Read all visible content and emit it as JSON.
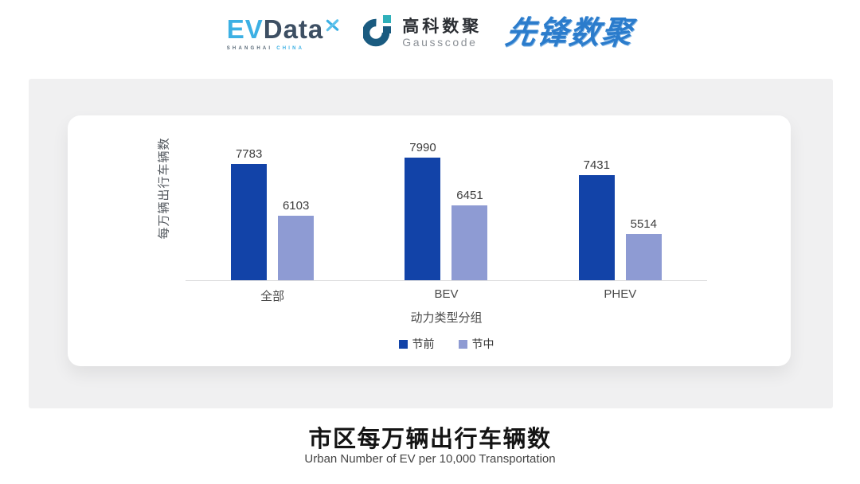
{
  "header": {
    "evdata": {
      "ev": "EV",
      "data": "Data",
      "sub_left": "SHANGHAI",
      "sub_right": "CHINA"
    },
    "gausscode": {
      "cn": "高科数聚",
      "en": "Gausscode"
    },
    "pioneer": {
      "text": "先锋数聚"
    }
  },
  "chart_data": {
    "type": "bar",
    "categories": [
      "全部",
      "BEV",
      "PHEV"
    ],
    "series": [
      {
        "name": "节前",
        "color": "#1243a8",
        "values": [
          7783,
          7990,
          7431
        ]
      },
      {
        "name": "节中",
        "color": "#8e9bd3",
        "values": [
          6103,
          6451,
          5514
        ]
      }
    ],
    "title": "",
    "xlabel": "动力类型分组",
    "ylabel": "每万辆出行车辆数",
    "ylim": [
      4000,
      8150
    ],
    "grid": false,
    "legend_position": "bottom",
    "value_labels_shown": true
  },
  "footer": {
    "title": "市区每万辆出行车辆数",
    "subtitle": "Urban Number of EV per 10,000 Transportation"
  },
  "colors": {
    "panel_bg": "#f0f0f1",
    "card_bg": "#ffffff",
    "axis_line": "#dcdcde",
    "evdata_blue": "#3cb0e4",
    "evdata_dark": "#3d4f63",
    "gausscode_blue": "#1a5b80",
    "gausscode_teal": "#2fb0ba",
    "pioneer_blue": "#2b7ccc"
  }
}
